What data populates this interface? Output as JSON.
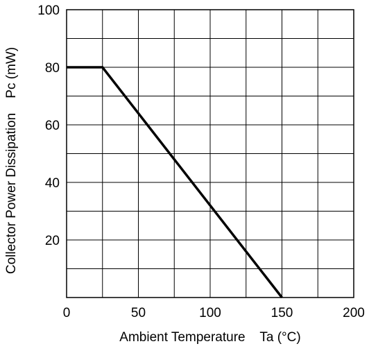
{
  "chart_data": {
    "type": "line",
    "title": "",
    "xlabel": "Ambient Temperature    Ta (°C)",
    "ylabel": "Collector Power Dissipation    Pc (mW)",
    "xlim": [
      0,
      200
    ],
    "ylim": [
      0,
      100
    ],
    "x_ticks": [
      0,
      50,
      100,
      150,
      200
    ],
    "y_ticks": [
      20,
      40,
      60,
      80,
      100
    ],
    "x_tick_labels": [
      "0",
      "50",
      "100",
      "150",
      "200"
    ],
    "y_tick_labels": [
      "20",
      "40",
      "60",
      "80",
      "100"
    ],
    "x_grid_step": 25,
    "y_grid_step": 10,
    "grid": true,
    "series": [
      {
        "x": [
          0,
          25,
          150
        ],
        "y": [
          80,
          80,
          0
        ]
      }
    ],
    "colors": {
      "line": "#000000",
      "grid": "#000000",
      "background": "#ffffff"
    }
  }
}
